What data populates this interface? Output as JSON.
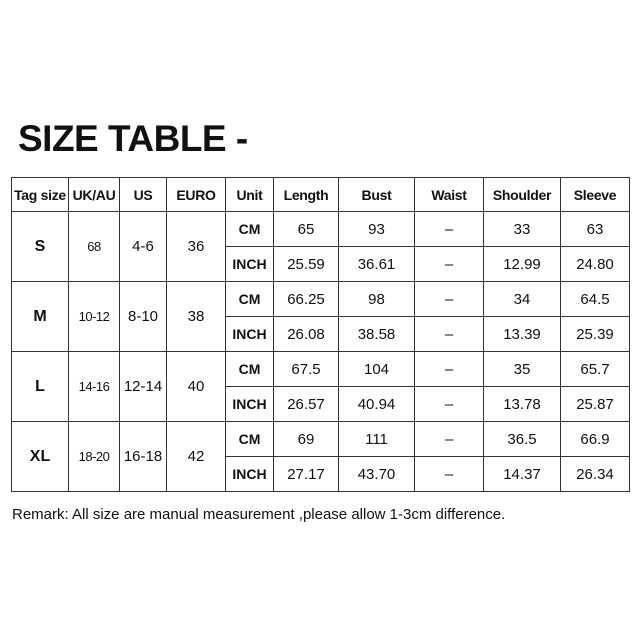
{
  "title": "SIZE TABLE -",
  "columns": [
    "Tag size",
    "UK/AU",
    "US",
    "EURO",
    "Unit",
    "Length",
    "Bust",
    "Waist",
    "Shoulder",
    "Sleeve"
  ],
  "rows": [
    {
      "tag": "S",
      "uk": "68",
      "us": "4-6",
      "euro": "36",
      "cm": {
        "unit": "CM",
        "length": "65",
        "bust": "93",
        "waist": "–",
        "shoulder": "33",
        "sleeve": "63"
      },
      "inch": {
        "unit": "INCH",
        "length": "25.59",
        "bust": "36.61",
        "waist": "–",
        "shoulder": "12.99",
        "sleeve": "24.80"
      }
    },
    {
      "tag": "M",
      "uk": "10-12",
      "us": "8-10",
      "euro": "38",
      "cm": {
        "unit": "CM",
        "length": "66.25",
        "bust": "98",
        "waist": "–",
        "shoulder": "34",
        "sleeve": "64.5"
      },
      "inch": {
        "unit": "INCH",
        "length": "26.08",
        "bust": "38.58",
        "waist": "–",
        "shoulder": "13.39",
        "sleeve": "25.39"
      }
    },
    {
      "tag": "L",
      "uk": "14-16",
      "us": "12-14",
      "euro": "40",
      "cm": {
        "unit": "CM",
        "length": "67.5",
        "bust": "104",
        "waist": "–",
        "shoulder": "35",
        "sleeve": "65.7"
      },
      "inch": {
        "unit": "INCH",
        "length": "26.57",
        "bust": "40.94",
        "waist": "–",
        "shoulder": "13.78",
        "sleeve": "25.87"
      }
    },
    {
      "tag": "XL",
      "uk": "18-20",
      "us": "16-18",
      "euro": "42",
      "cm": {
        "unit": "CM",
        "length": "69",
        "bust": "111",
        "waist": "–",
        "shoulder": "36.5",
        "sleeve": "66.9"
      },
      "inch": {
        "unit": "INCH",
        "length": "27.17",
        "bust": "43.70",
        "waist": "–",
        "shoulder": "14.37",
        "sleeve": "26.34"
      }
    }
  ],
  "remark": "Remark: All size are manual measurement ,please allow 1-3cm difference."
}
